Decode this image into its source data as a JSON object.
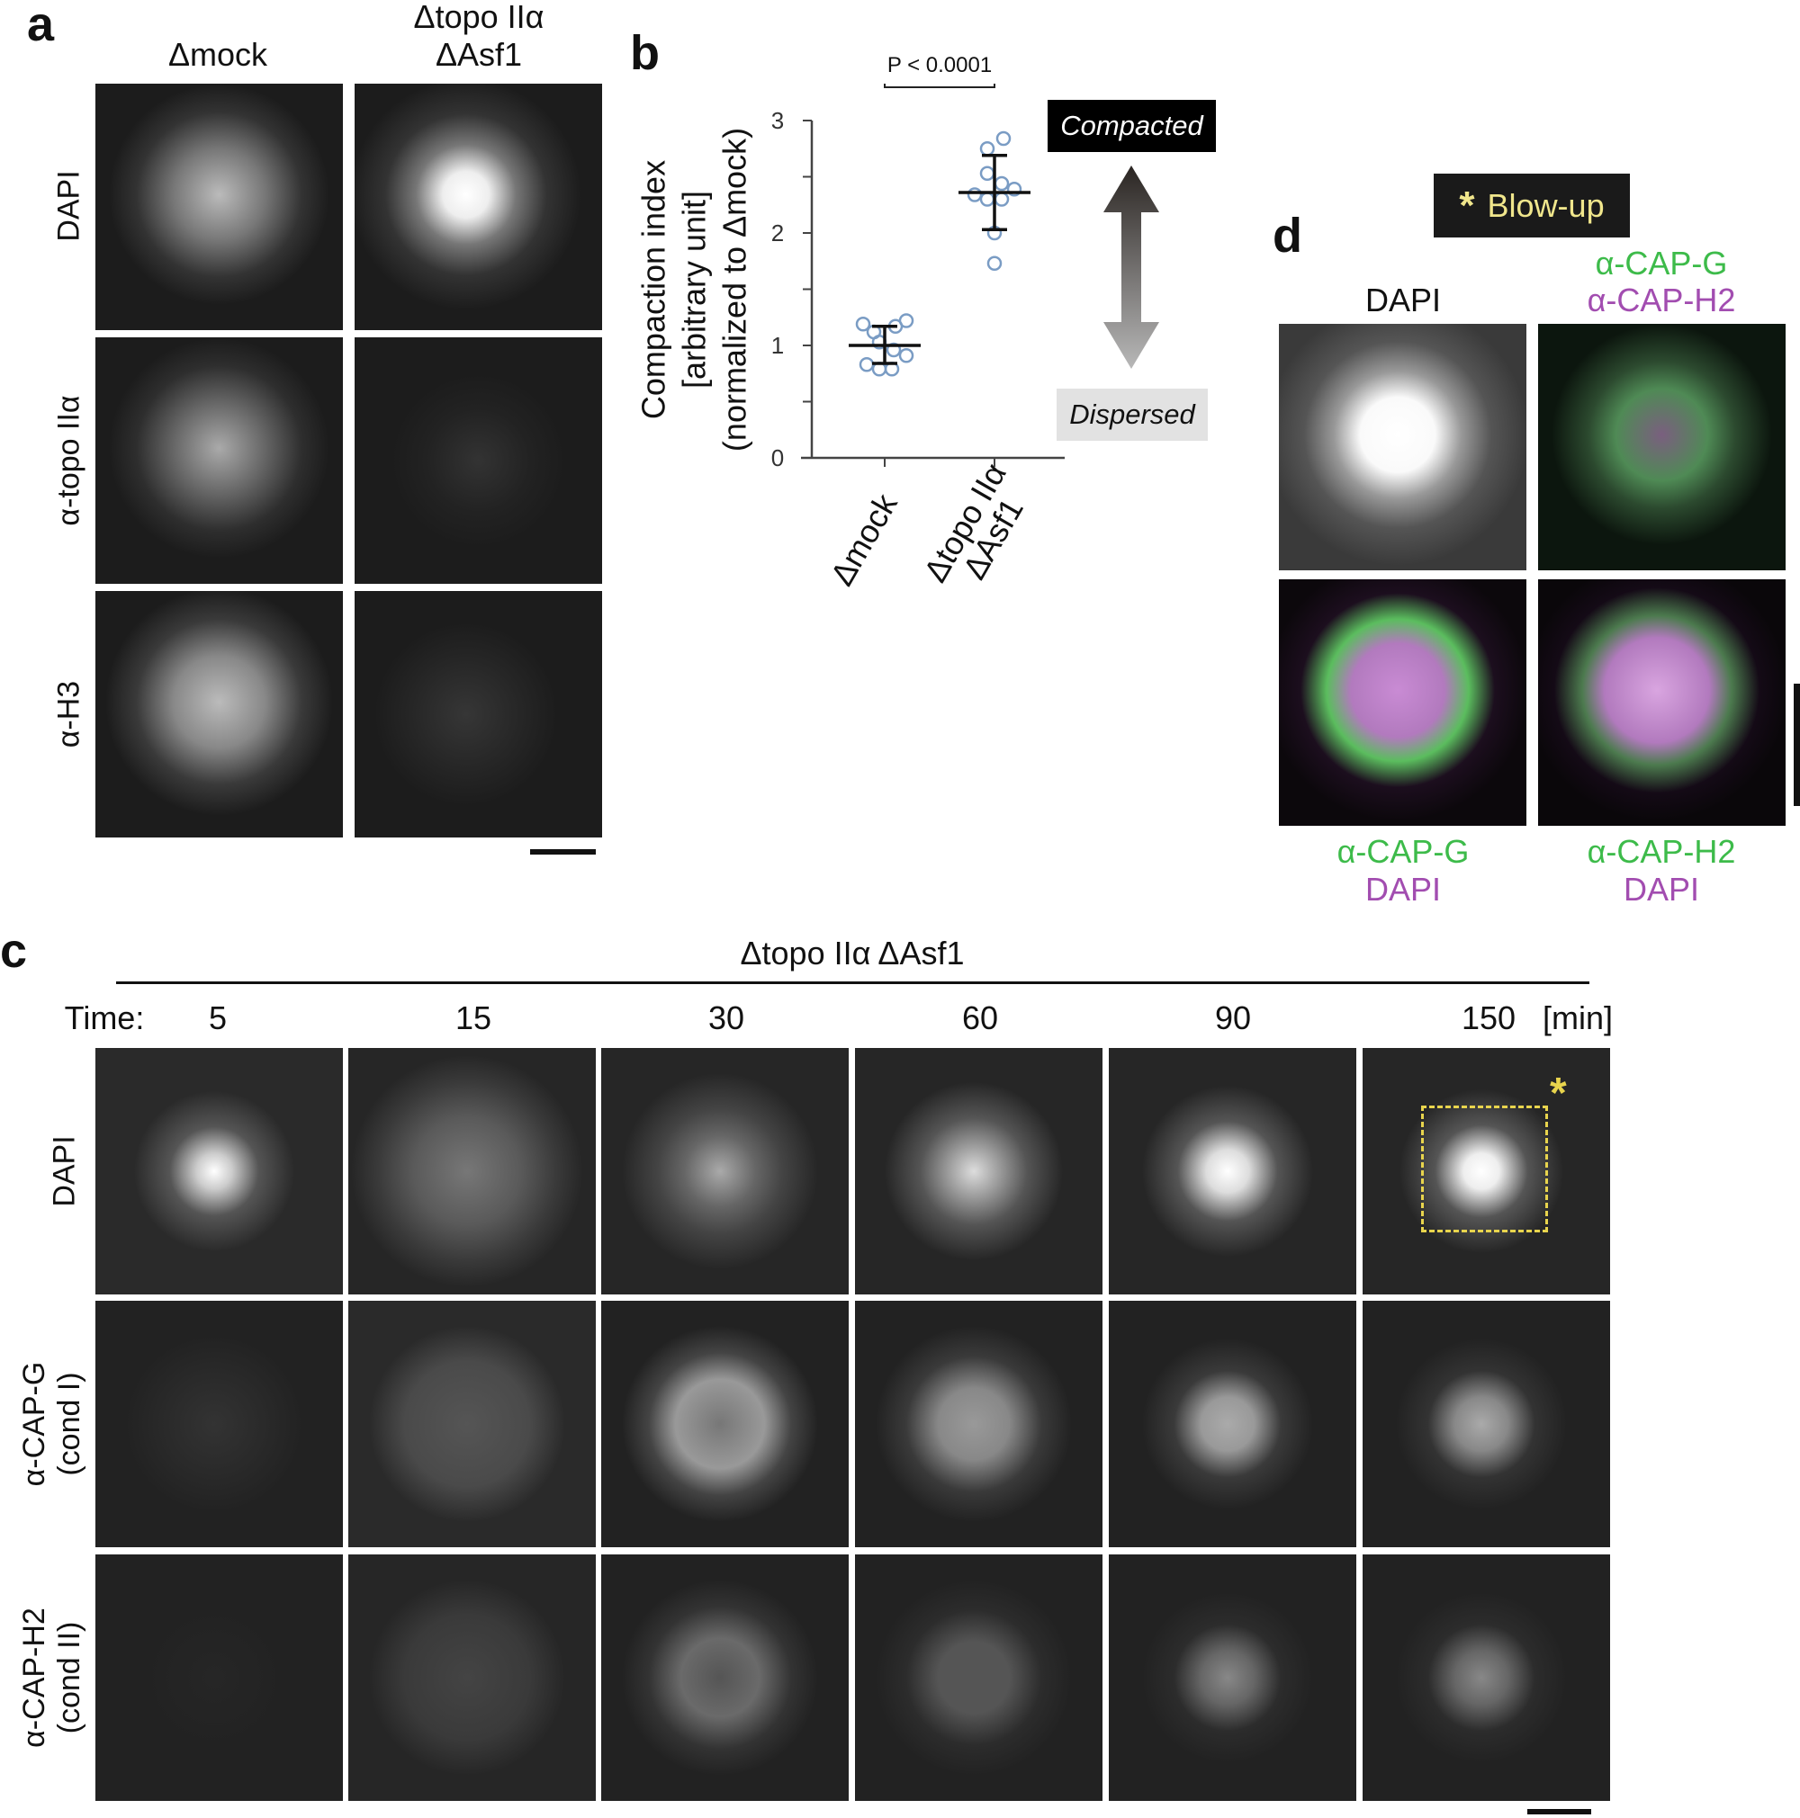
{
  "panel_a": {
    "letter": "a",
    "columns": [
      "Δmock",
      "Δtopo IIα",
      "ΔAsf1"
    ],
    "rows": [
      "DAPI",
      "α-topo IIα",
      "α-H3"
    ]
  },
  "panel_b": {
    "letter": "b",
    "p_value": "P < 0.0001",
    "compacted_label": "Compacted",
    "dispersed_label": "Dispersed"
  },
  "chart_data": {
    "type": "scatter",
    "ylabel": [
      "Compaction index",
      "[arbitrary unit]",
      "(normalized to Δmock)"
    ],
    "ylim": [
      0,
      3
    ],
    "yticks": [
      "0",
      "1",
      "2",
      "3"
    ],
    "categories": [
      "Δmock",
      "Δtopo IIα ΔAsf1"
    ],
    "category_labels": [
      [
        "Δmock"
      ],
      [
        "Δtopo IIα",
        "ΔAsf1"
      ]
    ],
    "series": [
      {
        "category": "Δmock",
        "values": [
          1.19,
          1.12,
          1.17,
          1.22,
          1.03,
          0.96,
          0.91,
          0.83,
          0.79,
          0.79
        ],
        "mean": 1.0,
        "sd_low": 0.84,
        "sd_high": 1.17
      },
      {
        "category": "Δtopo IIα ΔAsf1",
        "values": [
          2.84,
          2.75,
          2.53,
          2.44,
          2.39,
          2.34,
          2.3,
          2.3,
          2.0,
          1.73
        ],
        "mean": 2.36,
        "sd_low": 2.03,
        "sd_high": 2.69
      }
    ],
    "point_color": "#7a9cc4",
    "grid": false
  },
  "panel_c": {
    "letter": "c",
    "title": "Δtopo IIα ΔAsf1",
    "time_label": "Time:",
    "times": [
      "5",
      "15",
      "30",
      "60",
      "90",
      "150"
    ],
    "unit": "[min]",
    "rows": [
      [
        "DAPI"
      ],
      [
        "α-CAP-G",
        "(cond I)"
      ],
      [
        "α-CAP-H2",
        "(cond II)"
      ]
    ],
    "asterisk": "*"
  },
  "panel_d": {
    "letter": "d",
    "blowup_asterisk": "*",
    "blowup_label": "Blow-up",
    "top_left": "DAPI",
    "top_right": [
      "α-CAP-G",
      "α-CAP-H2"
    ],
    "bottom_left": [
      "α-CAP-G",
      "DAPI"
    ],
    "bottom_right": [
      "α-CAP-H2",
      "DAPI"
    ],
    "colors": {
      "green": "#3dbb4a",
      "magenta": "#a24db0",
      "yellow": "#f0e68c"
    }
  }
}
